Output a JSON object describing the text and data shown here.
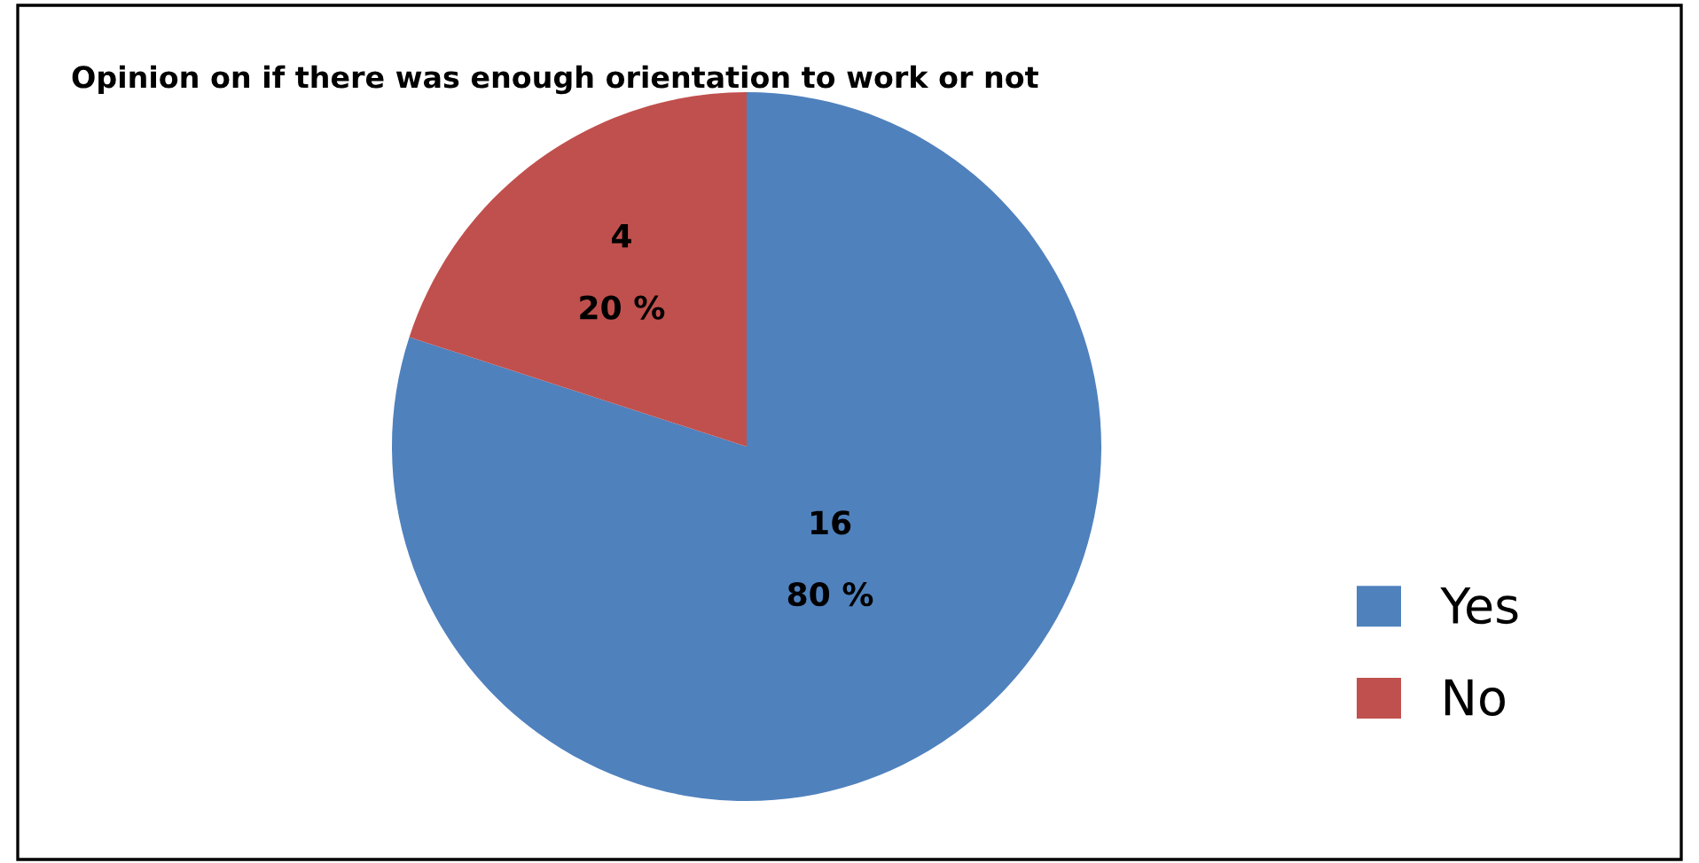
{
  "chart_data": {
    "type": "pie",
    "title": "Opinion on if there was enough orientation to work or not",
    "categories": [
      "Yes",
      "No"
    ],
    "values": [
      80,
      20
    ],
    "colors": [
      "#4f81bd",
      "#c0504d"
    ],
    "value_labels": [
      "16\n\n80 %",
      "4\n\n20 %"
    ],
    "legend": "right"
  }
}
